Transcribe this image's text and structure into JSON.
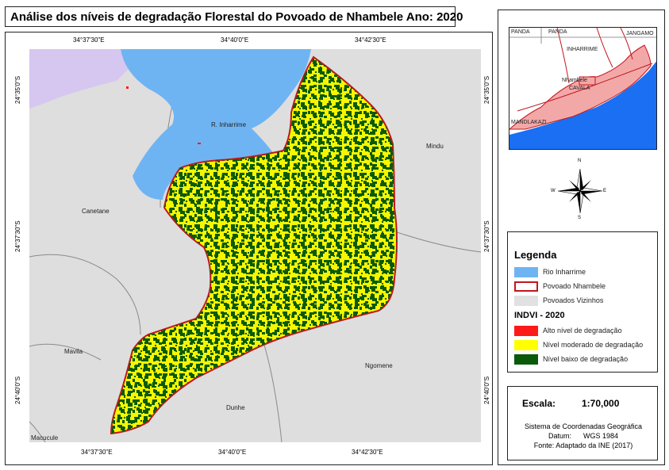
{
  "title": "Análise dos níveis de degradação Florestal do Povoado de Nhambele Ano: 2020",
  "coords": {
    "top": [
      "34°37'30\"E",
      "34°40'0\"E",
      "34°42'30\"E"
    ],
    "bottom": [
      "34°37'30\"E",
      "34°40'0\"E",
      "34°42'30\"E"
    ],
    "left": [
      "24°35'0\"S",
      "24°37'30\"S",
      "24°40'0\"S"
    ],
    "right": [
      "24°35'0\"S",
      "24°37'30\"S",
      "24°40'0\"S"
    ]
  },
  "places": {
    "river": "R. Inharrime",
    "mindu": "Mindu",
    "canetane": "Canetane",
    "mavila": "Mavila",
    "ngomene": "Ngomene",
    "dunhe": "Dunhe",
    "macucule": "Macucule"
  },
  "inset": {
    "labels": [
      "PANDA",
      "PANDA",
      "JANGAMO",
      "INHARRIME",
      "Nhambele",
      "CAVALA",
      "MANDLAKAZI"
    ]
  },
  "north_arrow": {
    "n": "N",
    "s": "S",
    "e": "E",
    "w": "W"
  },
  "legend": {
    "title": "Legenda",
    "items": [
      {
        "label": "Rio Inharrime",
        "color": "#6fb4f2"
      },
      {
        "label": "Povoado Nhambele",
        "color": "#ffffff",
        "border": "#c0181e"
      },
      {
        "label": "Povoados Vizinhos",
        "color": "#e1e1e1"
      }
    ],
    "ndvi_title": "INDVI - 2020",
    "ndvi_items": [
      {
        "label": "Alto nível de degradação",
        "color": "#ff1a1a"
      },
      {
        "label": "Nível moderado de degradação",
        "color": "#ffff00"
      },
      {
        "label": "Nível baixo de degradação",
        "color": "#0a5a0a"
      }
    ]
  },
  "scale": {
    "label": "Escala:",
    "value": "1:70,000"
  },
  "info": {
    "line1": "Sistema de Coordenadas Geográfica",
    "line2": "Datum:      WGS 1984",
    "line3": "Fonte: Adaptado da INE (2017)"
  }
}
